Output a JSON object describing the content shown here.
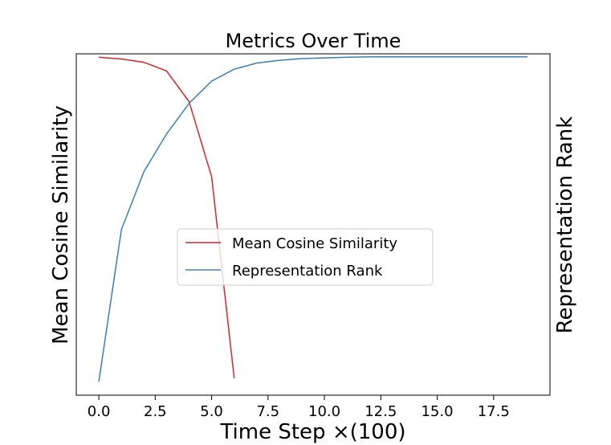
{
  "chart_data": {
    "type": "line",
    "title": "Metrics Over Time",
    "xlabel": "Time Step ×(100)",
    "ylabel_left": "Mean Cosine Similarity",
    "ylabel_right": "Representation Rank",
    "xlim": [
      -1,
      20
    ],
    "x_ticks": [
      0,
      2.5,
      5,
      7.5,
      10,
      12.5,
      15,
      17.5
    ],
    "x_tick_labels": [
      "0.0",
      "2.5",
      "5.0",
      "7.5",
      "10.0",
      "12.5",
      "15.0",
      "17.5"
    ],
    "grid": false,
    "legend_position": "center",
    "series": [
      {
        "name": "Mean Cosine Similarity",
        "axis": "left",
        "color": "#d62728",
        "x": [
          0,
          1,
          2,
          3,
          4,
          5,
          6
        ],
        "y": [
          0.99,
          0.985,
          0.975,
          0.95,
          0.86,
          0.64,
          0.05
        ],
        "ylim": [
          0,
          1
        ]
      },
      {
        "name": "Representation Rank",
        "axis": "right",
        "color": "#3a7fb5",
        "x": [
          0,
          1,
          2,
          3,
          4,
          5,
          6,
          7,
          8,
          9,
          10,
          11,
          12,
          13,
          14,
          15,
          16,
          17,
          18,
          19
        ],
        "y": [
          0.04,
          0.485,
          0.655,
          0.765,
          0.855,
          0.92,
          0.955,
          0.973,
          0.981,
          0.986,
          0.988,
          0.99,
          0.991,
          0.991,
          0.991,
          0.991,
          0.991,
          0.991,
          0.991,
          0.991
        ],
        "ylim": [
          0,
          1
        ]
      }
    ]
  }
}
